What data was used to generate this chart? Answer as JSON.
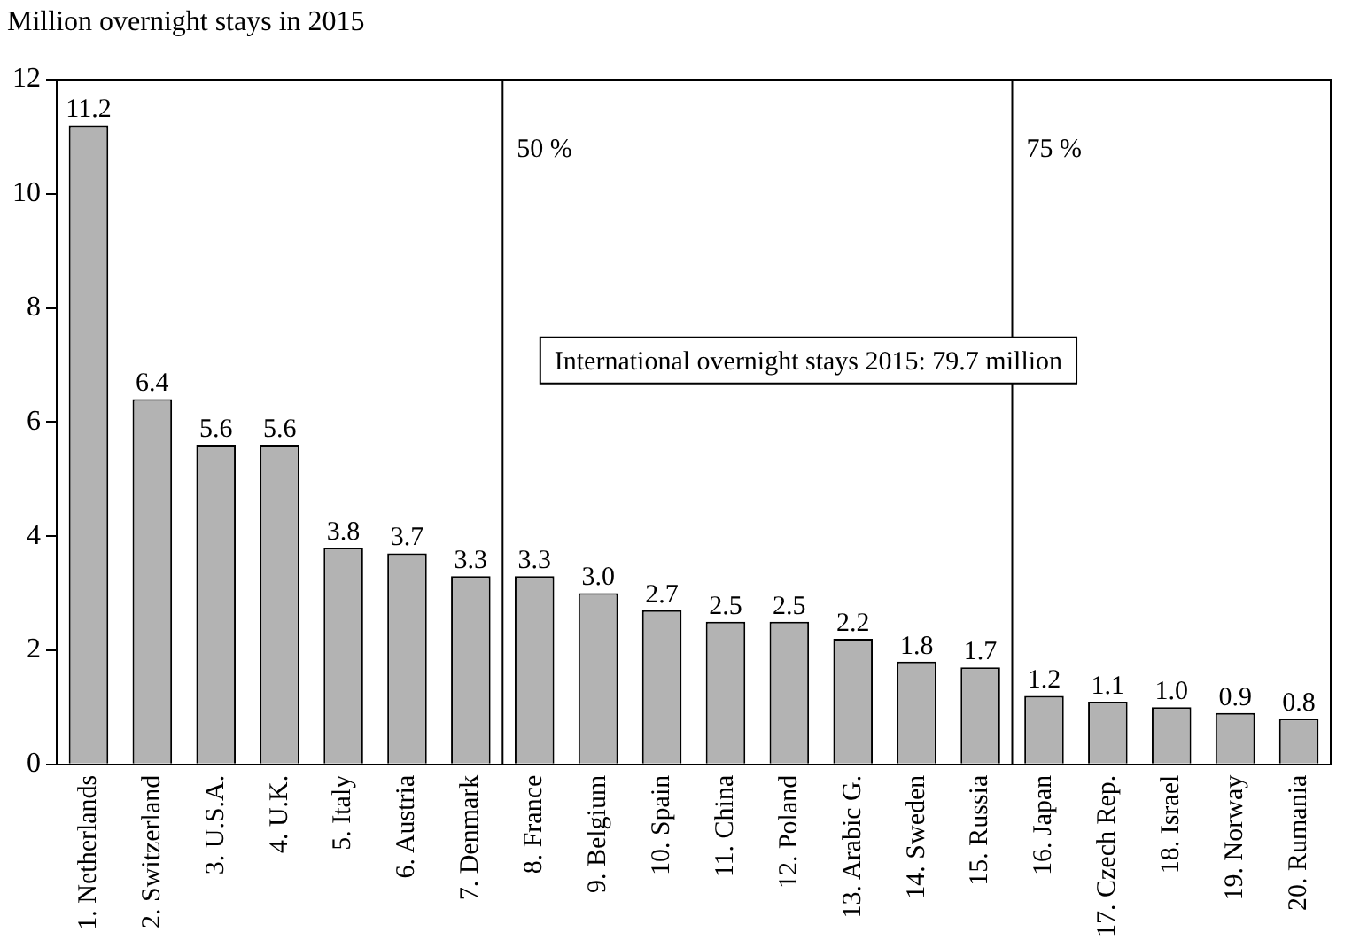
{
  "chart_data": {
    "type": "bar",
    "ylabel": "Million overnight stays in 2015",
    "categories": [
      "1. Netherlands",
      "2. Switzerland",
      "3. U.S.A.",
      "4. U.K.",
      "5. Italy",
      "6. Austria",
      "7. Denmark",
      "8. France",
      "9. Belgium",
      "10. Spain",
      "11. China",
      "12. Poland",
      "13. Arabic G.",
      "14. Sweden",
      "15. Russia",
      "16. Japan",
      "17. Czech Rep.",
      "18. Israel",
      "19. Norway",
      "20. Rumania"
    ],
    "values": [
      11.2,
      6.4,
      5.6,
      5.6,
      3.8,
      3.7,
      3.3,
      3.3,
      3.0,
      2.7,
      2.5,
      2.5,
      2.2,
      1.8,
      1.7,
      1.2,
      1.1,
      1.0,
      0.9,
      0.8
    ],
    "value_labels": [
      "11.2",
      "6.4",
      "5.6",
      "5.6",
      "3.8",
      "3.7",
      "3.3",
      "3.3",
      "3.0",
      "2.7",
      "2.5",
      "2.5",
      "2.2",
      "1.8",
      "1.7",
      "1.2",
      "1.1",
      "1.0",
      "0.9",
      "0.8"
    ],
    "color": "#b3b3b3",
    "ylim": [
      0,
      12
    ],
    "yticks": [
      0,
      2,
      4,
      6,
      8,
      10,
      12
    ],
    "annotations": [
      "50 %",
      "75 %",
      "International overnight stays 2015: 79.7 million"
    ],
    "grid": false,
    "legend": false
  }
}
